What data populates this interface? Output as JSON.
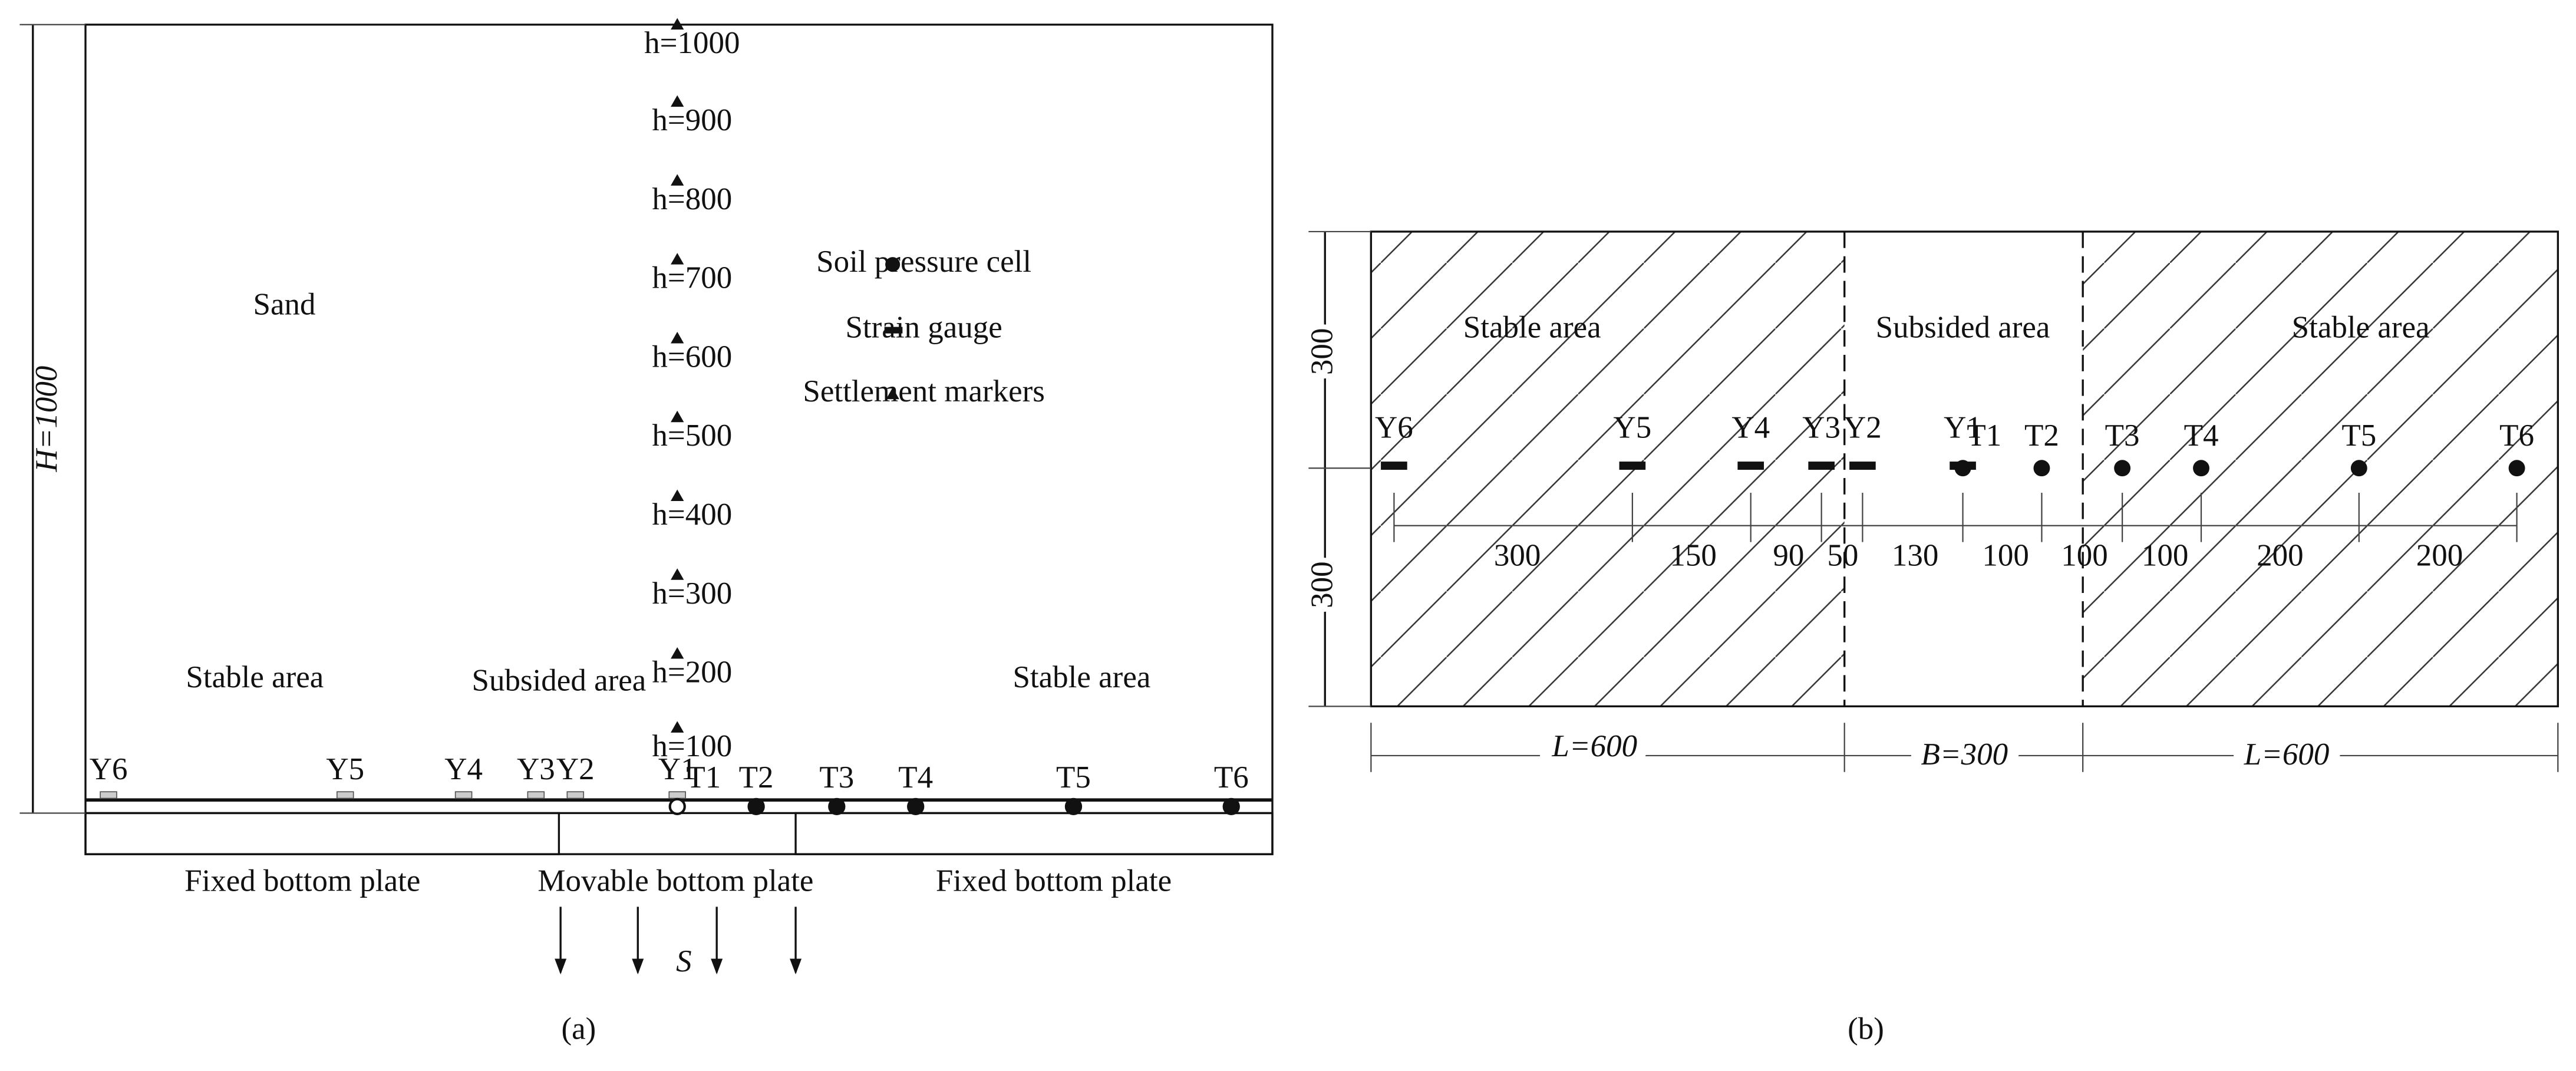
{
  "panel_a": {
    "caption": "(a)",
    "height_label": "H=1000",
    "material": "Sand",
    "areas": [
      "Stable area",
      "Subsided area",
      "Stable area"
    ],
    "markers": [
      "h=1000",
      "h=900",
      "h=800",
      "h=700",
      "h=600",
      "h=500",
      "h=400",
      "h=300",
      "h=200",
      "h=100"
    ],
    "legend": [
      "Soil pressure cell",
      "Strain gauge",
      "Settlement markers"
    ],
    "strain_gauges": [
      "Y6",
      "Y5",
      "Y4",
      "Y3",
      "Y2",
      "Y1"
    ],
    "pressure_cells": [
      "T1",
      "T2",
      "T3",
      "T4",
      "T5",
      "T6"
    ],
    "plates": [
      "Fixed bottom plate",
      "Movable bottom plate",
      "Fixed bottom plate"
    ],
    "settlement": "S"
  },
  "panel_b": {
    "caption": "(b)",
    "areas": [
      "Stable area",
      "Subsided area",
      "Stable area"
    ],
    "depths": [
      "300",
      "300"
    ],
    "strain_gauges": [
      "Y6",
      "Y5",
      "Y4",
      "Y3",
      "Y2",
      "Y1"
    ],
    "pressure_cells": [
      "T1",
      "T2",
      "T3",
      "T4",
      "T5",
      "T6"
    ],
    "spacings": [
      "300",
      "150",
      "90",
      "50",
      "130",
      "100",
      "100",
      "100",
      "200",
      "200"
    ],
    "widths": [
      "L=600",
      "B=300",
      "L=600"
    ]
  }
}
